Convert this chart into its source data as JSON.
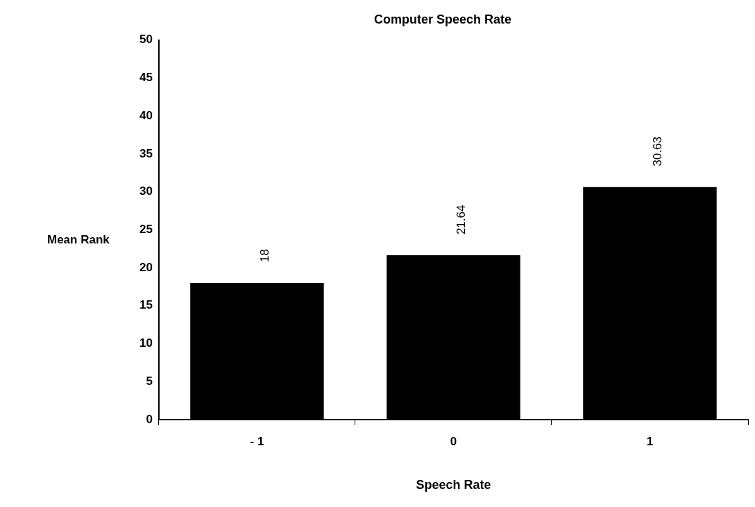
{
  "chart_data": {
    "type": "bar",
    "title": "Computer Speech Rate",
    "xlabel": "Speech Rate",
    "ylabel": "Mean Rank",
    "categories": [
      "- 1",
      "0",
      "1"
    ],
    "values": [
      18,
      21.64,
      30.63
    ],
    "color": "#000000",
    "ylim": [
      0,
      50
    ],
    "yticks": [
      0,
      5,
      10,
      15,
      20,
      25,
      30,
      35,
      40,
      45,
      50
    ],
    "grid": false,
    "data_labels": true
  }
}
